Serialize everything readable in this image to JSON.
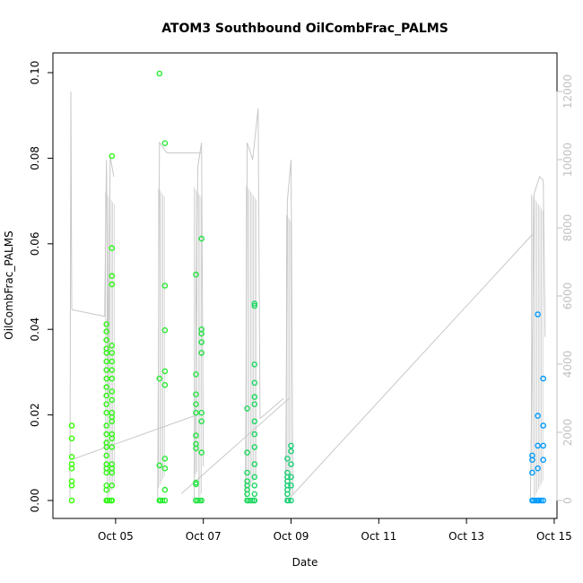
{
  "chart_data": {
    "type": "scatter",
    "title": "ATOM3 Southbound OilCombFrac_PALMS",
    "xlabel": "Date",
    "ylabel": "OilCombFrac_PALMS",
    "xlim": [
      "2017-10-04",
      "2017-10-15"
    ],
    "ylim": [
      0,
      0.1
    ],
    "x_ticks": [
      "Oct 05",
      "Oct 07",
      "Oct 09",
      "Oct 11",
      "Oct 13",
      "Oct 15"
    ],
    "y_ticks": [
      "0.00",
      "0.02",
      "0.04",
      "0.06",
      "0.08",
      "0.10"
    ],
    "y2_ticks": [
      "0",
      "2000",
      "4000",
      "6000",
      "8000",
      "10000",
      "12000"
    ],
    "y2_range": [
      0,
      12000
    ],
    "colors": {
      "axis": "#000000",
      "secondary_axis": "#c0c0c0",
      "altitude_trace": "#c8c8c8",
      "points_start": "#33ff00",
      "points_end": "#0099ff"
    },
    "series": [
      {
        "points": [
          [
            "2017-10-04T00:00",
            0.0
          ],
          [
            "2017-10-04T00:00",
            0.0035
          ],
          [
            "2017-10-04T00:00",
            0.0045
          ],
          [
            "2017-10-04T00:00",
            0.0075
          ],
          [
            "2017-10-04T00:00",
            0.0085
          ],
          [
            "2017-10-04T00:00",
            0.0102
          ],
          [
            "2017-10-04T00:00",
            0.0145
          ],
          [
            "2017-10-04T00:00",
            0.0175
          ],
          [
            "2017-10-04T19:00",
            0.0
          ],
          [
            "2017-10-04T19:00",
            0.0025
          ],
          [
            "2017-10-04T19:00",
            0.0035
          ],
          [
            "2017-10-04T19:00",
            0.0065
          ],
          [
            "2017-10-04T19:00",
            0.0075
          ],
          [
            "2017-10-04T19:00",
            0.0085
          ],
          [
            "2017-10-04T19:00",
            0.0105
          ],
          [
            "2017-10-04T19:00",
            0.0125
          ],
          [
            "2017-10-04T19:00",
            0.0135
          ],
          [
            "2017-10-04T19:00",
            0.0155
          ],
          [
            "2017-10-04T19:00",
            0.0175
          ],
          [
            "2017-10-04T19:00",
            0.0205
          ],
          [
            "2017-10-04T19:00",
            0.0225
          ],
          [
            "2017-10-04T19:00",
            0.0245
          ],
          [
            "2017-10-04T19:00",
            0.0265
          ],
          [
            "2017-10-04T19:00",
            0.0285
          ],
          [
            "2017-10-04T19:00",
            0.0305
          ],
          [
            "2017-10-04T19:00",
            0.0325
          ],
          [
            "2017-10-04T19:00",
            0.0345
          ],
          [
            "2017-10-04T19:00",
            0.0355
          ],
          [
            "2017-10-04T19:00",
            0.0375
          ],
          [
            "2017-10-04T19:00",
            0.0395
          ],
          [
            "2017-10-04T19:00",
            0.0412
          ],
          [
            "2017-10-04T22:00",
            0.0
          ],
          [
            "2017-10-04T22:00",
            0.0035
          ],
          [
            "2017-10-04T22:00",
            0.0065
          ],
          [
            "2017-10-04T22:00",
            0.0075
          ],
          [
            "2017-10-04T22:00",
            0.0085
          ],
          [
            "2017-10-04T22:00",
            0.0125
          ],
          [
            "2017-10-04T22:00",
            0.0145
          ],
          [
            "2017-10-04T22:00",
            0.0155
          ],
          [
            "2017-10-04T22:00",
            0.0185
          ],
          [
            "2017-10-04T22:00",
            0.0195
          ],
          [
            "2017-10-04T22:00",
            0.0205
          ],
          [
            "2017-10-04T22:00",
            0.0235
          ],
          [
            "2017-10-04T22:00",
            0.0255
          ],
          [
            "2017-10-04T22:00",
            0.0285
          ],
          [
            "2017-10-04T22:00",
            0.0305
          ],
          [
            "2017-10-04T22:00",
            0.0325
          ],
          [
            "2017-10-04T22:00",
            0.0345
          ],
          [
            "2017-10-04T22:00",
            0.0362
          ],
          [
            "2017-10-04T22:00",
            0.0505
          ],
          [
            "2017-10-04T22:00",
            0.0525
          ],
          [
            "2017-10-04T22:00",
            0.059
          ],
          [
            "2017-10-04T22:00",
            0.0805
          ],
          [
            "2017-10-06T00:00",
            0.0
          ],
          [
            "2017-10-06T00:00",
            0.0082
          ],
          [
            "2017-10-06T00:00",
            0.0285
          ],
          [
            "2017-10-06T00:00",
            0.0998
          ],
          [
            "2017-10-06T03:00",
            0.0
          ],
          [
            "2017-10-06T03:00",
            0.0025
          ],
          [
            "2017-10-06T03:00",
            0.0075
          ],
          [
            "2017-10-06T03:00",
            0.0098
          ],
          [
            "2017-10-06T03:00",
            0.027
          ],
          [
            "2017-10-06T03:00",
            0.0302
          ],
          [
            "2017-10-06T03:00",
            0.0398
          ],
          [
            "2017-10-06T03:00",
            0.0502
          ],
          [
            "2017-10-06T03:00",
            0.0835
          ],
          [
            "2017-10-06T20:00",
            0.0
          ],
          [
            "2017-10-06T20:00",
            0.0038
          ],
          [
            "2017-10-06T20:00",
            0.0042
          ],
          [
            "2017-10-06T20:00",
            0.0122
          ],
          [
            "2017-10-06T20:00",
            0.0132
          ],
          [
            "2017-10-06T20:00",
            0.0152
          ],
          [
            "2017-10-06T20:00",
            0.0205
          ],
          [
            "2017-10-06T20:00",
            0.0225
          ],
          [
            "2017-10-06T20:00",
            0.0248
          ],
          [
            "2017-10-06T20:00",
            0.0295
          ],
          [
            "2017-10-06T20:00",
            0.0528
          ],
          [
            "2017-10-06T23:00",
            0.0
          ],
          [
            "2017-10-06T23:00",
            0.0112
          ],
          [
            "2017-10-06T23:00",
            0.0185
          ],
          [
            "2017-10-06T23:00",
            0.0205
          ],
          [
            "2017-10-06T23:00",
            0.0345
          ],
          [
            "2017-10-06T23:00",
            0.037
          ],
          [
            "2017-10-06T23:00",
            0.039
          ],
          [
            "2017-10-06T23:00",
            0.04
          ],
          [
            "2017-10-06T23:00",
            0.0612
          ],
          [
            "2017-10-08T00:00",
            0.0
          ],
          [
            "2017-10-08T00:00",
            0.0015
          ],
          [
            "2017-10-08T00:00",
            0.0025
          ],
          [
            "2017-10-08T00:00",
            0.0035
          ],
          [
            "2017-10-08T00:00",
            0.0045
          ],
          [
            "2017-10-08T00:00",
            0.0065
          ],
          [
            "2017-10-08T00:00",
            0.0112
          ],
          [
            "2017-10-08T00:00",
            0.0215
          ],
          [
            "2017-10-08T04:00",
            0.0
          ],
          [
            "2017-10-08T04:00",
            0.0015
          ],
          [
            "2017-10-08T04:00",
            0.0035
          ],
          [
            "2017-10-08T04:00",
            0.0055
          ],
          [
            "2017-10-08T04:00",
            0.0085
          ],
          [
            "2017-10-08T04:00",
            0.0125
          ],
          [
            "2017-10-08T04:00",
            0.0155
          ],
          [
            "2017-10-08T04:00",
            0.0185
          ],
          [
            "2017-10-08T04:00",
            0.0225
          ],
          [
            "2017-10-08T04:00",
            0.0242
          ],
          [
            "2017-10-08T04:00",
            0.0275
          ],
          [
            "2017-10-08T04:00",
            0.0318
          ],
          [
            "2017-10-08T04:00",
            0.0455
          ],
          [
            "2017-10-08T04:00",
            0.046
          ],
          [
            "2017-10-08T22:00",
            0.0
          ],
          [
            "2017-10-08T22:00",
            0.0015
          ],
          [
            "2017-10-08T22:00",
            0.0025
          ],
          [
            "2017-10-08T22:00",
            0.0035
          ],
          [
            "2017-10-08T22:00",
            0.0045
          ],
          [
            "2017-10-08T22:00",
            0.0055
          ],
          [
            "2017-10-08T22:00",
            0.0065
          ],
          [
            "2017-10-08T22:00",
            0.0098
          ],
          [
            "2017-10-09T00:00",
            0.0
          ],
          [
            "2017-10-09T00:00",
            0.0035
          ],
          [
            "2017-10-09T00:00",
            0.0055
          ],
          [
            "2017-10-09T00:00",
            0.0085
          ],
          [
            "2017-10-09T00:00",
            0.0115
          ],
          [
            "2017-10-09T00:00",
            0.0128
          ],
          [
            "2017-10-14T12:00",
            0.0
          ],
          [
            "2017-10-14T12:00",
            0.0065
          ],
          [
            "2017-10-14T12:00",
            0.0095
          ],
          [
            "2017-10-14T12:00",
            0.0105
          ],
          [
            "2017-10-14T15:00",
            0.0
          ],
          [
            "2017-10-14T15:00",
            0.0075
          ],
          [
            "2017-10-14T15:00",
            0.0128
          ],
          [
            "2017-10-14T15:00",
            0.0198
          ],
          [
            "2017-10-14T15:00",
            0.0435
          ],
          [
            "2017-10-14T18:00",
            0.0
          ],
          [
            "2017-10-14T18:00",
            0.0095
          ],
          [
            "2017-10-14T18:00",
            0.0128
          ],
          [
            "2017-10-14T18:00",
            0.0175
          ],
          [
            "2017-10-14T18:00",
            0.0285
          ]
        ]
      }
    ],
    "secondary_series": {
      "segments": [
        [
          [
            "2017-10-03T23:00",
            0
          ],
          [
            "2017-10-03T23:30",
            12000
          ],
          [
            "2017-10-04T00:00",
            5600
          ]
        ],
        [
          [
            "2017-10-04T00:00",
            5600
          ],
          [
            "2017-10-04T18:00",
            5400
          ]
        ],
        [
          [
            "2017-10-04T18:00",
            5400
          ],
          [
            "2017-10-04T19:00",
            10000
          ],
          [
            "2017-10-04T20:00",
            3000
          ],
          [
            "2017-10-04T21:00",
            10100
          ],
          [
            "2017-10-04T23:00",
            9500
          ]
        ],
        [
          [
            "2017-10-04T00:00",
            1200
          ],
          [
            "2017-10-06T20:00",
            2500
          ]
        ],
        [
          [
            "2017-10-05T23:00",
            0
          ],
          [
            "2017-10-06T00:00",
            10500
          ],
          [
            "2017-10-06T04:00",
            10200
          ],
          [
            "2017-10-06T23:00",
            10200
          ]
        ],
        [
          [
            "2017-10-06T19:00",
            0
          ],
          [
            "2017-10-06T21:00",
            9800
          ],
          [
            "2017-10-06T23:00",
            10500
          ],
          [
            "2017-10-07T00:00",
            1000
          ]
        ],
        [
          [
            "2017-10-06T12:00",
            200
          ],
          [
            "2017-10-08T23:00",
            3000
          ]
        ],
        [
          [
            "2017-10-07T23:00",
            0
          ],
          [
            "2017-10-08T00:00",
            10500
          ],
          [
            "2017-10-08T03:00",
            10000
          ],
          [
            "2017-10-08T06:00",
            11500
          ],
          [
            "2017-10-08T07:00",
            2400
          ]
        ],
        [
          [
            "2017-10-08T07:00",
            2400
          ],
          [
            "2017-10-08T20:00",
            3000
          ]
        ],
        [
          [
            "2017-10-08T21:00",
            0
          ],
          [
            "2017-10-08T22:00",
            8800
          ],
          [
            "2017-10-09T00:00",
            10000
          ],
          [
            "2017-10-09T01:00",
            200
          ]
        ],
        [
          [
            "2017-10-08T22:00",
            0
          ],
          [
            "2017-10-14T12:00",
            7800
          ]
        ],
        [
          [
            "2017-10-14T11:00",
            0
          ],
          [
            "2017-10-14T13:00",
            9000
          ],
          [
            "2017-10-14T16:00",
            9500
          ],
          [
            "2017-10-14T18:00",
            9400
          ],
          [
            "2017-10-14T19:00",
            4800
          ]
        ]
      ]
    }
  }
}
